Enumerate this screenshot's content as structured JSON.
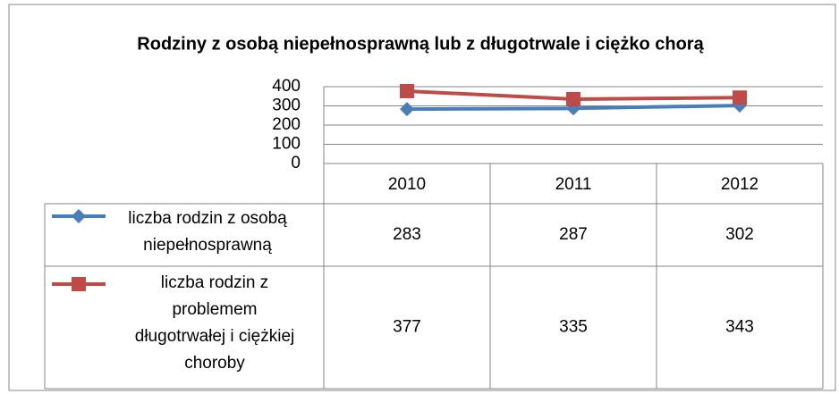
{
  "chart_data": {
    "type": "line",
    "title": "Rodziny z osobą niepełnosprawną lub z długotrwale i ciężko chorą",
    "categories": [
      "2010",
      "2011",
      "2012"
    ],
    "series": [
      {
        "name": "liczba rodzin z osobą niepełnosprawną",
        "color": "#4a7ebb",
        "marker": "diamond",
        "values": [
          283,
          287,
          302
        ]
      },
      {
        "name": "liczba rodzin z problemem długotrwałej i ciężkiej choroby",
        "color": "#be4b48",
        "marker": "square",
        "values": [
          377,
          335,
          343
        ]
      }
    ],
    "ylim": [
      0,
      400
    ],
    "yticks": [
      0,
      100,
      200,
      300,
      400
    ],
    "grid": true,
    "data_table": true
  }
}
